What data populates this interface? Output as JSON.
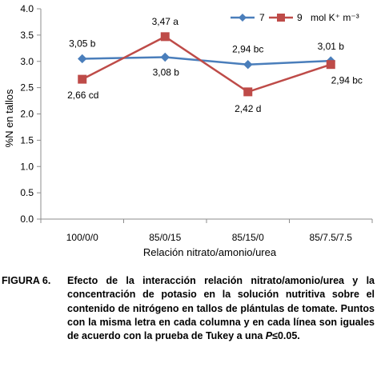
{
  "chart_data": {
    "type": "line",
    "categories": [
      "100/0/0",
      "85/0/15",
      "85/15/0",
      "85/7.5/7.5"
    ],
    "xlabel": "Relación nitrato/amonio/urea",
    "ylabel": "%N en tallos",
    "ylim": [
      0,
      4
    ],
    "yticks": [
      "0.0",
      "0.5",
      "1.0",
      "1.5",
      "2.0",
      "2.5",
      "3.0",
      "3.5",
      "4.0"
    ],
    "grid": false,
    "legend_position": "top-right",
    "legend_unit": "mol K⁺ m⁻³",
    "series": [
      {
        "name": "7",
        "color": "#4a7ebb",
        "marker": "diamond",
        "values": [
          3.05,
          3.08,
          2.94,
          3.01
        ],
        "labels": [
          "3,05 b",
          "3,08 b",
          "2,94 bc",
          "3,01 b"
        ]
      },
      {
        "name": "9",
        "color": "#be4b48",
        "marker": "square",
        "values": [
          2.66,
          3.47,
          2.42,
          2.94
        ],
        "labels": [
          "2,66 cd",
          "3,47 a",
          "2,42 d",
          "2,94 bc"
        ]
      }
    ]
  },
  "caption": {
    "label": "FIGURA 6.",
    "text_before": "Efecto de la interacción  relación nitrato/amonio/urea y la concentración de potasio en la solución nutritiva sobre el contenido de nitrógeno en tallos de plántulas de tomate. Puntos con la misma letra en cada columna y en cada línea son iguales de acuerdo con la prueba de Tukey a una ",
    "p_symbol": "P",
    "text_after": "≤0.05."
  }
}
